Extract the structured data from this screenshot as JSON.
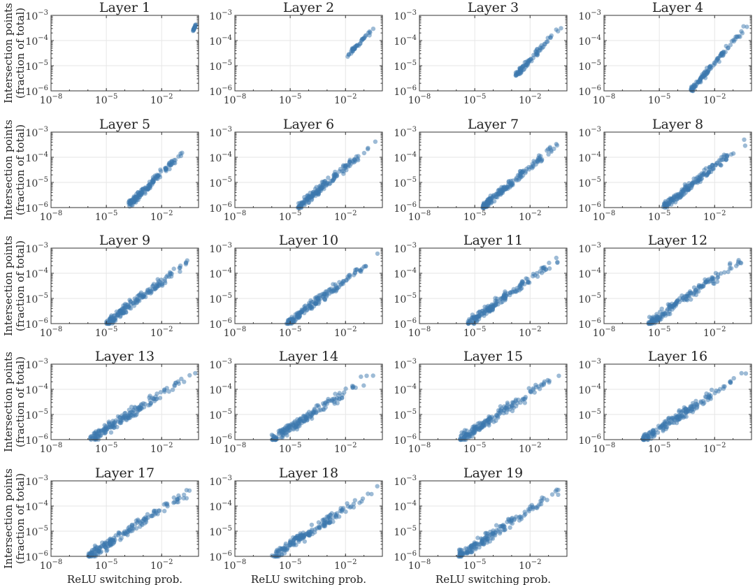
{
  "chart_data": {
    "type": "scatter",
    "x_scale": "log",
    "y_scale": "log",
    "xlim": [
      1e-08,
      1
    ],
    "ylim": [
      1e-06,
      0.001
    ],
    "x_ticks": [
      {
        "base": "10",
        "exp": "−8"
      },
      {
        "base": "10",
        "exp": "−5"
      },
      {
        "base": "10",
        "exp": "−2"
      }
    ],
    "y_ticks": [
      {
        "base": "10",
        "exp": "−6"
      },
      {
        "base": "10",
        "exp": "−5"
      },
      {
        "base": "10",
        "exp": "−4"
      },
      {
        "base": "10",
        "exp": "−3"
      }
    ],
    "xlabel": "ReLU switching prob.",
    "ylabel_line1": "Intersection points",
    "ylabel_line2": "(fraction of total)",
    "grid": true,
    "point_color": "#3b78ae",
    "panels": [
      {
        "title": "Layer 1",
        "x_min_exp": -0.3,
        "y_min_exp": -3.62,
        "spread": 0.05,
        "n": 20
      },
      {
        "title": "Layer 2",
        "x_min_exp": -1.9,
        "y_min_exp": -4.6,
        "spread": 0.12,
        "n": 40
      },
      {
        "title": "Layer 3",
        "x_min_exp": -2.8,
        "y_min_exp": -5.4,
        "spread": 0.18,
        "n": 80
      },
      {
        "title": "Layer 4",
        "x_min_exp": -3.3,
        "y_min_exp": -6.0,
        "spread": 0.2,
        "n": 110
      },
      {
        "title": "Layer 5",
        "x_min_exp": -3.8,
        "y_min_exp": -5.9,
        "spread": 0.22,
        "n": 140
      },
      {
        "title": "Layer 6",
        "x_min_exp": -4.6,
        "y_min_exp": -6.0,
        "spread": 0.24,
        "n": 160
      },
      {
        "title": "Layer 7",
        "x_min_exp": -4.6,
        "y_min_exp": -6.0,
        "spread": 0.25,
        "n": 170
      },
      {
        "title": "Layer 8",
        "x_min_exp": -4.8,
        "y_min_exp": -6.0,
        "spread": 0.26,
        "n": 170
      },
      {
        "title": "Layer 9",
        "x_min_exp": -5.0,
        "y_min_exp": -6.0,
        "spread": 0.27,
        "n": 170
      },
      {
        "title": "Layer 10",
        "x_min_exp": -5.2,
        "y_min_exp": -6.0,
        "spread": 0.28,
        "n": 170
      },
      {
        "title": "Layer 11",
        "x_min_exp": -5.4,
        "y_min_exp": -6.0,
        "spread": 0.28,
        "n": 170
      },
      {
        "title": "Layer 12",
        "x_min_exp": -5.6,
        "y_min_exp": -6.0,
        "spread": 0.28,
        "n": 170
      },
      {
        "title": "Layer 13",
        "x_min_exp": -5.9,
        "y_min_exp": -6.0,
        "spread": 0.3,
        "n": 170
      },
      {
        "title": "Layer 14",
        "x_min_exp": -6.0,
        "y_min_exp": -6.0,
        "spread": 0.3,
        "n": 170
      },
      {
        "title": "Layer 15",
        "x_min_exp": -5.8,
        "y_min_exp": -6.0,
        "spread": 0.3,
        "n": 170
      },
      {
        "title": "Layer 16",
        "x_min_exp": -5.9,
        "y_min_exp": -6.0,
        "spread": 0.3,
        "n": 170
      },
      {
        "title": "Layer 17",
        "x_min_exp": -6.0,
        "y_min_exp": -6.0,
        "spread": 0.3,
        "n": 170
      },
      {
        "title": "Layer 18",
        "x_min_exp": -6.0,
        "y_min_exp": -6.0,
        "spread": 0.3,
        "n": 170
      },
      {
        "title": "Layer 19",
        "x_min_exp": -5.9,
        "y_min_exp": -6.0,
        "spread": 0.3,
        "n": 170
      }
    ]
  }
}
